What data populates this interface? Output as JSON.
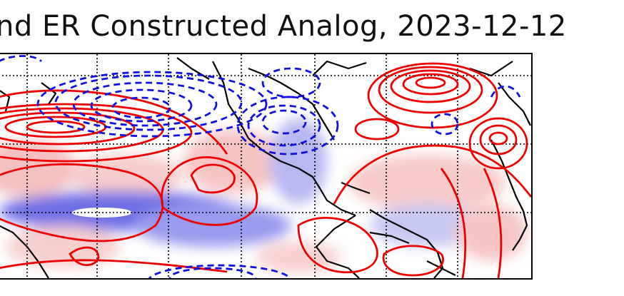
{
  "figure": {
    "title": "nd ER Constructed Analog, 2023-12-12"
  },
  "colors": {
    "positive_contour": "#ee0000",
    "negative_contour": "#1010e0",
    "coast": "#000000",
    "grid": "#000000",
    "shade_positive": "#f7b2b2",
    "shade_negative": "#7a7ae8"
  }
}
